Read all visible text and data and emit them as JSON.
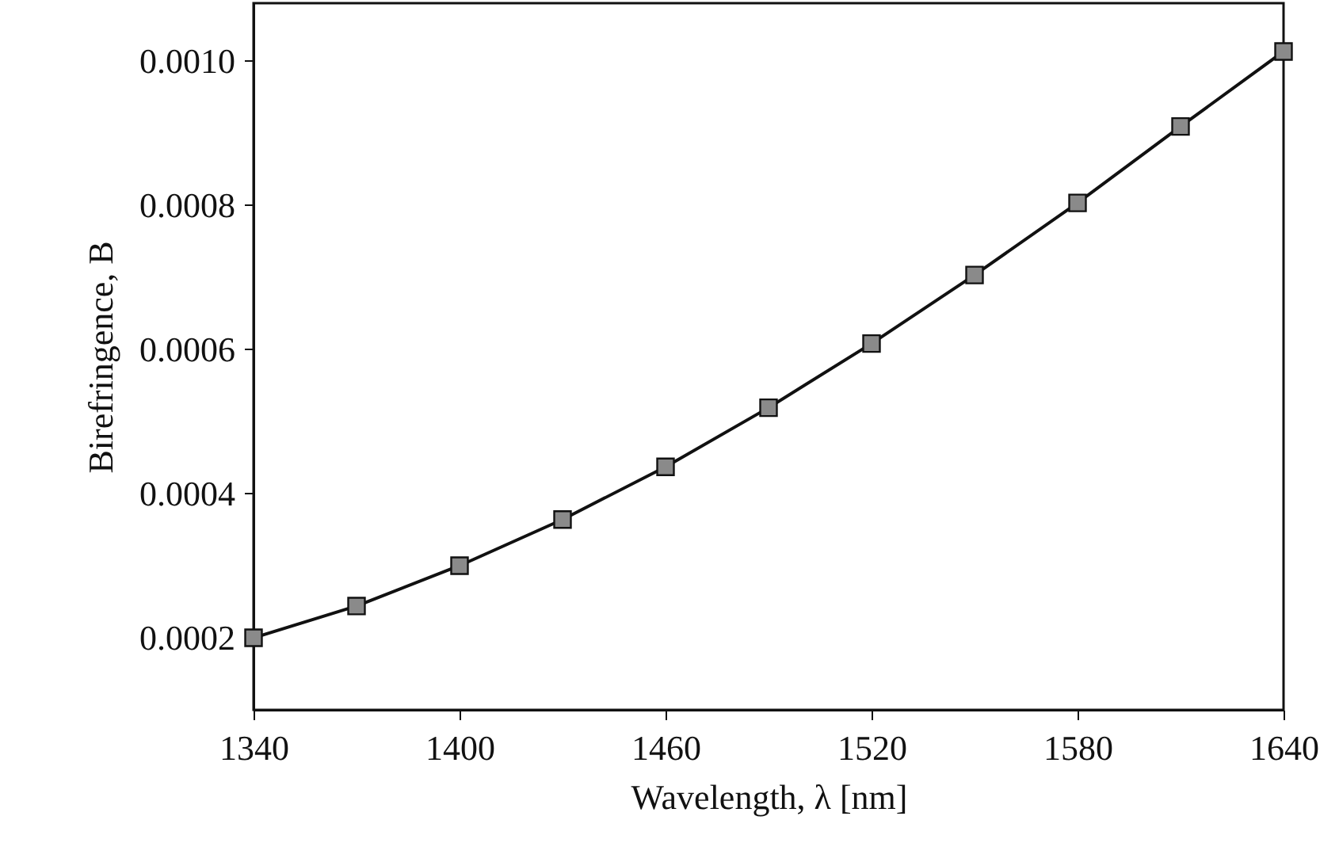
{
  "chart_data": {
    "type": "line",
    "xlabel": "Wavelength, λ [nm]",
    "ylabel": "Birefringence, B",
    "x": [
      1340,
      1370,
      1400,
      1430,
      1460,
      1490,
      1520,
      1550,
      1580,
      1610,
      1640
    ],
    "series": [
      {
        "color": "#111111",
        "values": [
          0.0002,
          0.000244,
          0.0003,
          0.000364,
          0.000437,
          0.000519,
          0.000608,
          0.000703,
          0.000803,
          0.000909,
          0.001013
        ]
      }
    ],
    "xlim": [
      1340,
      1640
    ],
    "xticks": [
      1340,
      1400,
      1460,
      1520,
      1580,
      1640
    ],
    "ylim": [
      0.0001,
      0.00108
    ],
    "yticks": [
      {
        "value": 0.0002,
        "label": "0.0002"
      },
      {
        "value": 0.0004,
        "label": "0.0004"
      },
      {
        "value": 0.0006,
        "label": "0.0006"
      },
      {
        "value": 0.0008,
        "label": "0.0008"
      },
      {
        "value": 0.001,
        "label": "0.0010"
      }
    ],
    "marker": "square",
    "line_style": "solid"
  }
}
